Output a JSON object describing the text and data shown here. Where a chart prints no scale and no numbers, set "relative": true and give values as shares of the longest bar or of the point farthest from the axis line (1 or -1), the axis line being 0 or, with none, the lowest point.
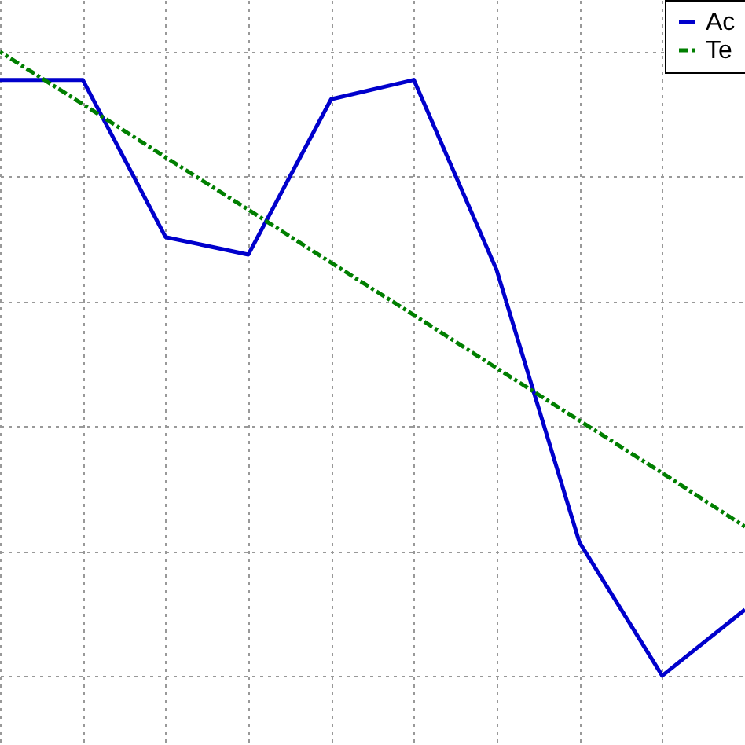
{
  "chart_data": {
    "type": "line",
    "relative": true,
    "grid": true,
    "legend": "top right",
    "categories": [
      null,
      null,
      null,
      null,
      null,
      null,
      null,
      null,
      null,
      null
    ],
    "series": [
      {
        "name": "Ac",
        "color": "#0000cc",
        "line_style": "solid",
        "values": [
          0.955,
          0.955,
          0.703,
          0.675,
          0.924,
          0.955,
          0.65,
          0.214,
          0,
          0.106
        ]
      },
      {
        "name": "Te",
        "color": "#007f00",
        "line_style": "dashed",
        "values": [
          1,
          0.916,
          0.831,
          0.747,
          0.662,
          0.578,
          0.493,
          0.409,
          0.325,
          0.239
        ]
      }
    ]
  }
}
